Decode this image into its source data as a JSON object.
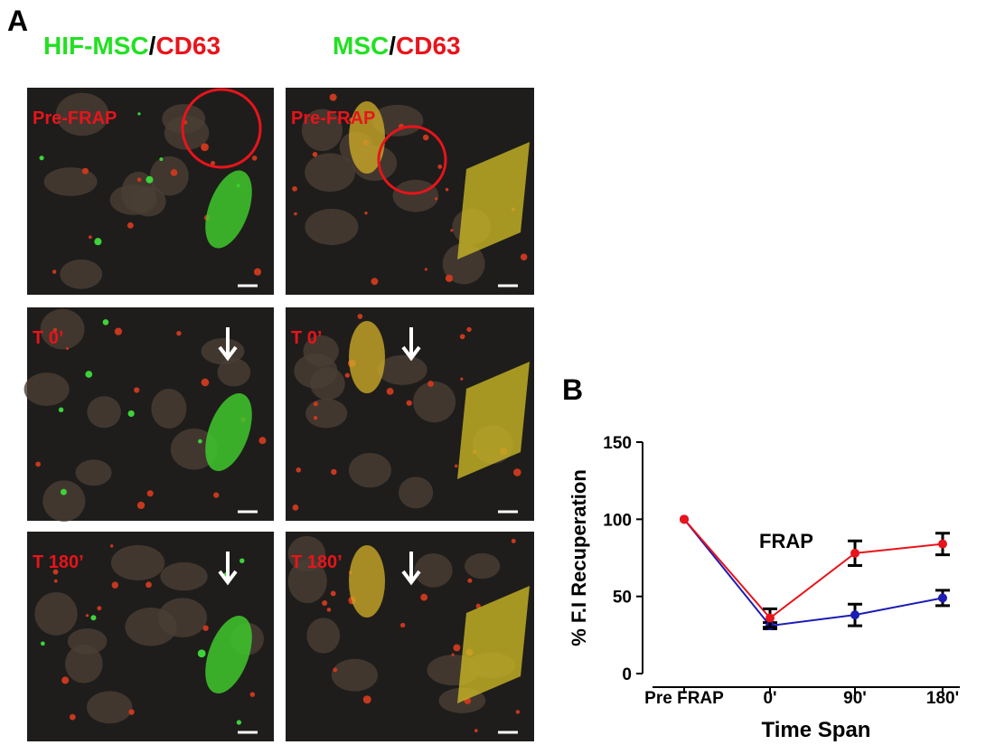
{
  "panel_a": {
    "label": "A",
    "columns": [
      {
        "title": [
          "HIF-MSC",
          "/",
          "CD63"
        ],
        "images": [
          "Pre-FRAP",
          "T 0’",
          "T 180’"
        ]
      },
      {
        "title": [
          "MSC",
          "/",
          "CD63"
        ],
        "images": [
          "Pre-FRAP",
          "T 0’",
          "T 180’"
        ]
      }
    ]
  },
  "chart_data": {
    "type": "line",
    "label": "B",
    "annotation": "FRAP",
    "x_label": "Time Span",
    "y_label": "% F.I Recuperation",
    "categories": [
      "Pre FRAP",
      "0'",
      "90'",
      "180'"
    ],
    "series": [
      {
        "color": "#e8141b",
        "values": [
          100,
          36,
          78,
          84
        ],
        "errors": [
          null,
          6,
          8,
          7
        ]
      },
      {
        "color": "#1c1cb4",
        "values": [
          100,
          31,
          38,
          49
        ],
        "errors": [
          null,
          2,
          7,
          5
        ]
      }
    ],
    "ylim": [
      0,
      150
    ],
    "yticks": [
      0,
      50,
      100,
      150
    ]
  }
}
